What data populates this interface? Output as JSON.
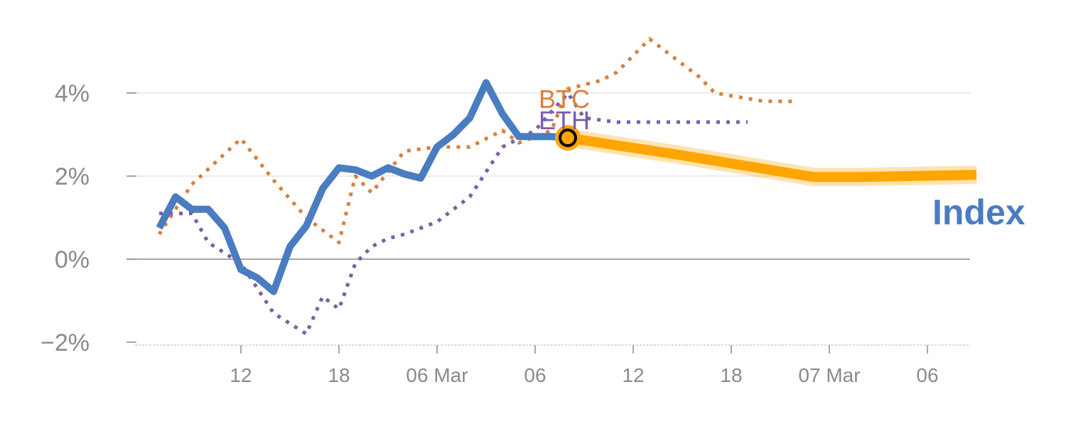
{
  "chart_data": {
    "type": "line",
    "title": "",
    "xlabel": "",
    "ylabel": "",
    "x_ticks": [
      "12",
      "18",
      "06 Mar",
      "06",
      "12",
      "18",
      "07 Mar",
      "06"
    ],
    "y_ticks": [
      "4%",
      "2%",
      "0%",
      "−2%"
    ],
    "ylim": [
      -2.1,
      5.3
    ],
    "xlim": [
      6.5,
      58.5
    ],
    "series": [
      {
        "name": "BTC",
        "style": "dotted",
        "color": "#d9803a",
        "x": [
          8,
          10,
          13,
          15,
          17,
          19,
          20,
          21,
          22,
          23,
          25,
          27,
          29,
          30,
          32,
          33,
          35,
          36,
          38,
          41,
          42,
          45,
          47
        ],
        "y": [
          0.6,
          1.8,
          2.9,
          1.9,
          1.0,
          0.4,
          2.0,
          1.6,
          2.1,
          2.6,
          2.7,
          2.7,
          3.1,
          2.8,
          3.1,
          4.1,
          4.3,
          4.5,
          5.3,
          4.4,
          4.0,
          3.8,
          3.8
        ]
      },
      {
        "name": "ETH",
        "style": "dotted",
        "color": "#7b5ea8",
        "x": [
          8,
          10,
          11,
          13,
          15,
          17,
          18,
          19,
          20,
          21,
          22,
          23,
          25,
          27,
          29,
          31,
          33,
          34,
          36,
          38,
          40,
          41,
          44
        ],
        "y": [
          1.1,
          1.1,
          0.4,
          -0.1,
          -1.3,
          -1.8,
          -0.9,
          -1.2,
          -0.1,
          0.3,
          0.5,
          0.6,
          0.9,
          1.5,
          2.7,
          3.1,
          4.0,
          3.4,
          3.3,
          3.3,
          3.3,
          3.3,
          3.3
        ]
      },
      {
        "name": "Index",
        "style": "solid",
        "color": "#4a7cc0",
        "x": [
          8,
          9,
          10,
          11,
          12,
          13,
          14,
          15,
          16,
          17,
          18,
          19,
          20,
          21,
          22,
          23,
          24,
          25,
          26,
          27,
          28,
          29,
          30,
          31,
          32,
          33
        ],
        "y": [
          0.75,
          1.5,
          1.2,
          1.2,
          0.75,
          -0.25,
          -0.45,
          -0.78,
          0.3,
          0.8,
          1.7,
          2.2,
          2.15,
          2.0,
          2.2,
          2.05,
          1.95,
          2.7,
          3.0,
          3.4,
          4.25,
          3.5,
          2.95,
          2.95,
          2.95,
          2.92
        ]
      },
      {
        "name": "",
        "style": "forecast",
        "color": "#ffa500",
        "x": [
          33,
          40,
          48,
          51,
          58
        ],
        "y": [
          2.92,
          2.5,
          1.98,
          1.98,
          2.03
        ]
      }
    ],
    "marker": {
      "x": 33,
      "y": 2.92
    },
    "grid": true
  },
  "labels": {
    "btc": "BTC",
    "eth": "ETH",
    "index": "Index"
  },
  "colors": {
    "btc": "#d9803a",
    "eth": "#7b5ea8",
    "index": "#4a7cc0",
    "forecast": "#ffa500",
    "grid": "#e6e6e6",
    "zero_line": "#888888",
    "ticks": "#8a8a8a"
  }
}
